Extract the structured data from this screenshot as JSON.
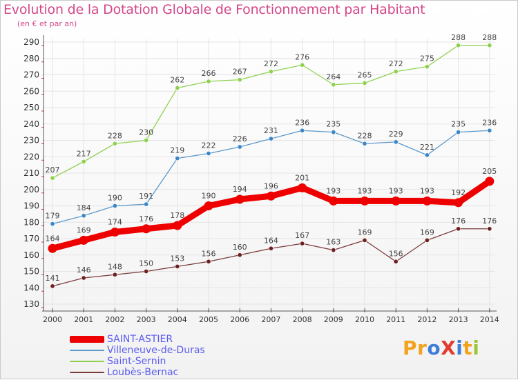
{
  "title": "Evolution de la Dotation Globale de Fonctionnement par Habitant",
  "subtitle": "(en € et par an)",
  "colors": {
    "title": "#d4478a",
    "axis": "#555555",
    "grid": "#e4e4e4",
    "tick_red": "#e33333"
  },
  "logo": {
    "text": "ProXiti",
    "letters": [
      {
        "ch": "P",
        "color": "#f3a21c"
      },
      {
        "ch": "r",
        "color": "#f3a21c"
      },
      {
        "ch": "o",
        "color": "#3e7dd8"
      },
      {
        "ch": "X",
        "color": "#e23a2e"
      },
      {
        "ch": "i",
        "color": "#3e7dd8"
      },
      {
        "ch": "t",
        "color": "#f3a21c"
      },
      {
        "ch": "i",
        "color": "#9ac73a"
      }
    ]
  },
  "chart_data": {
    "type": "line",
    "title": "Evolution de la Dotation Globale de Fonctionnement par Habitant",
    "subtitle": "(en € et par an)",
    "x": [
      "2000",
      "2001",
      "2002",
      "2003",
      "2004",
      "2005",
      "2006",
      "2007",
      "2008",
      "2009",
      "2010",
      "2011",
      "2012",
      "2013",
      "2014"
    ],
    "ylim": [
      130,
      290
    ],
    "yticks": [
      130,
      140,
      150,
      160,
      170,
      180,
      190,
      200,
      210,
      220,
      230,
      240,
      250,
      260,
      270,
      280,
      290
    ],
    "grid": true,
    "legend_position": "bottom-left",
    "series": [
      {
        "name": "Saint-Sernin",
        "color": "#8fd14f",
        "point_color": "#8fd14f",
        "weight": "thin",
        "values": [
          207,
          217,
          228,
          230,
          262,
          266,
          267,
          272,
          276,
          264,
          265,
          272,
          275,
          288,
          288
        ]
      },
      {
        "name": "Villeneuve-de-Duras",
        "color": "#5b98cb",
        "point_color": "#3a86c8",
        "weight": "thin",
        "values": [
          179,
          184,
          190,
          191,
          219,
          222,
          226,
          231,
          236,
          235,
          228,
          229,
          221,
          235,
          236
        ]
      },
      {
        "name": "SAINT-ASTIER",
        "color": "#ee0000",
        "point_color": "#ee0000",
        "weight": "thick",
        "values": [
          164,
          169,
          174,
          176,
          178,
          190,
          194,
          196,
          201,
          193,
          193,
          193,
          193,
          192,
          205
        ]
      },
      {
        "name": "Loubès-Bernac",
        "color": "#7a3b3b",
        "point_color": "#6e2020",
        "weight": "thin",
        "values": [
          141,
          146,
          148,
          150,
          153,
          156,
          160,
          164,
          167,
          163,
          169,
          156,
          169,
          176,
          176
        ]
      }
    ],
    "legend": [
      {
        "label": "SAINT-ASTIER",
        "color": "#ee0000",
        "weight": "thick"
      },
      {
        "label": "Villeneuve-de-Duras",
        "color": "#5b98cb",
        "weight": "thin"
      },
      {
        "label": "Saint-Sernin",
        "color": "#8fd14f",
        "weight": "thin"
      },
      {
        "label": "Loubès-Bernac",
        "color": "#7a3b3b",
        "weight": "thin"
      }
    ]
  }
}
